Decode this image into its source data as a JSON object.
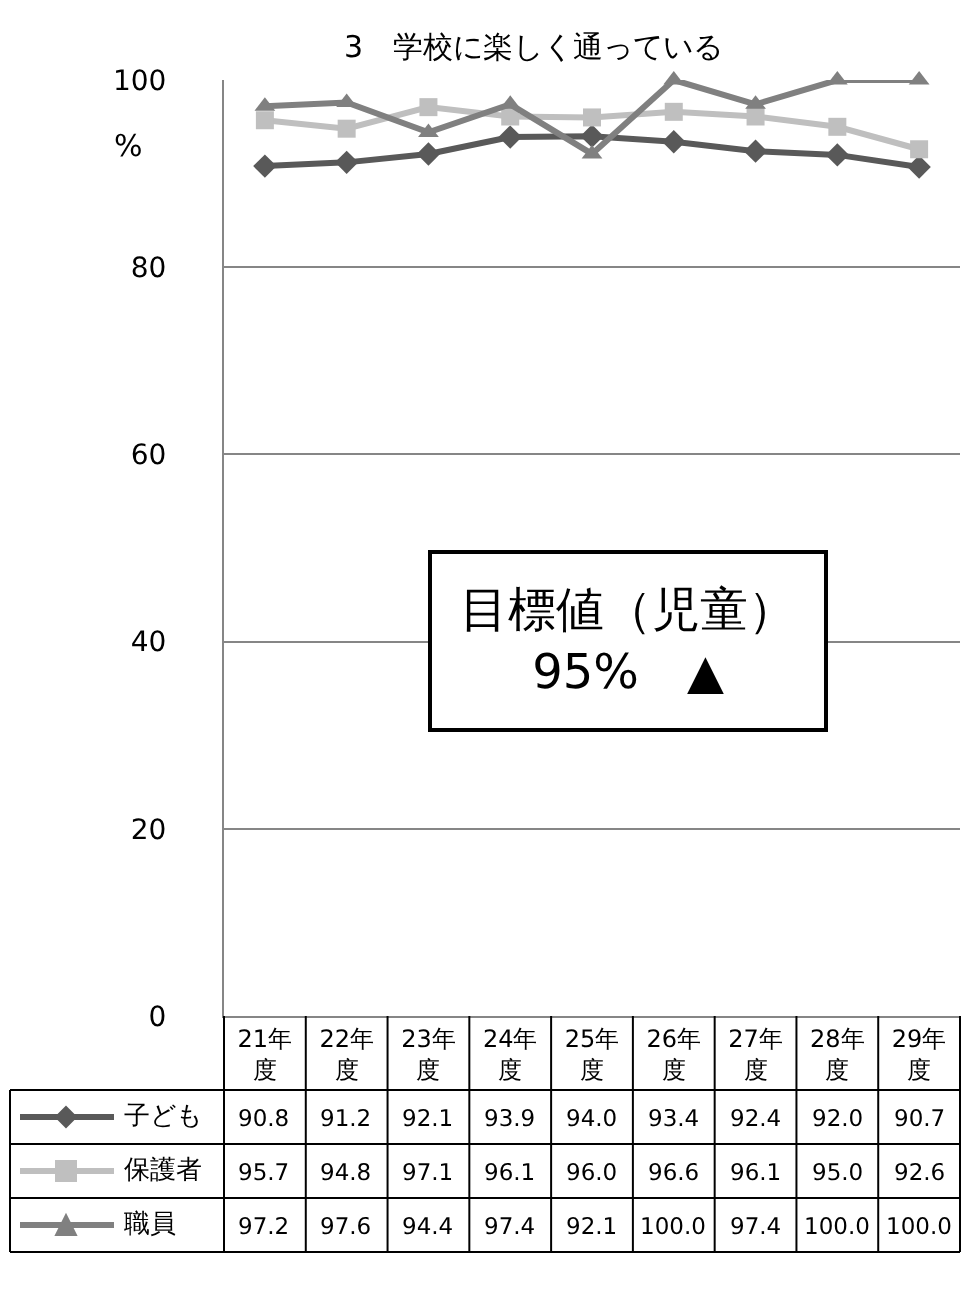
{
  "chart_data": {
    "type": "line",
    "title": "3　学校に楽しく通っている",
    "ylabel": "%",
    "categories": [
      "21年度",
      "22年度",
      "23年度",
      "24年度",
      "25年度",
      "26年度",
      "27年度",
      "28年度",
      "29年度"
    ],
    "series": [
      {
        "name": "子ども",
        "color": "#595959",
        "marker": "diamond",
        "values": [
          90.8,
          91.2,
          92.1,
          93.9,
          94.0,
          93.4,
          92.4,
          92.0,
          90.7
        ],
        "value_labels": [
          "90.8",
          "91.2",
          "92.1",
          "93.9",
          "94.0",
          "93.4",
          "92.4",
          "92.0",
          "90.7"
        ]
      },
      {
        "name": "保護者",
        "color": "#bfbfbf",
        "marker": "square",
        "values": [
          95.7,
          94.8,
          97.1,
          96.1,
          96.0,
          96.6,
          96.1,
          95.0,
          92.6
        ],
        "value_labels": [
          "95.7",
          "94.8",
          "97.1",
          "96.1",
          "96.0",
          "96.6",
          "96.1",
          "95.0",
          "92.6"
        ]
      },
      {
        "name": "職員",
        "color": "#808080",
        "marker": "triangle",
        "values": [
          97.2,
          97.6,
          94.4,
          97.4,
          92.1,
          100.0,
          97.4,
          100.0,
          100.0
        ],
        "value_labels": [
          "97.2",
          "97.6",
          "94.4",
          "97.4",
          "92.1",
          "100.0",
          "97.4",
          "100.0",
          "100.0"
        ]
      }
    ],
    "ylim": [
      0,
      100
    ],
    "yticks": [
      0,
      20,
      40,
      60,
      80,
      100
    ],
    "grid": "y",
    "legend": "bottom",
    "line_style": "solid",
    "annotations": [
      "目標値（児童）\n95%　▲"
    ]
  }
}
